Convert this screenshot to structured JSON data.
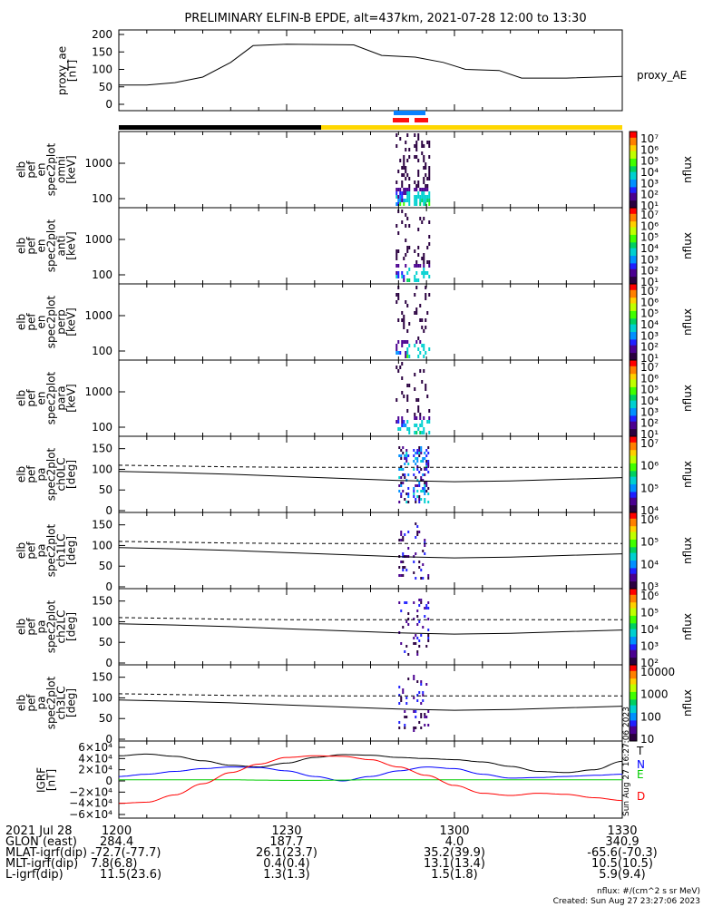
{
  "title": "PRELIMINARY ELFIN-B EPDE, alt=437km, 2021-07-28 12:00 to 13:30",
  "colors": {
    "blue_bar": "#0a82ff",
    "red_bar": "#ff1010",
    "black_bar": "#000000",
    "yellow_bar": "#ffd700"
  },
  "chart_data": {
    "type": "heatmap",
    "x_range_min": [
      0,
      90
    ],
    "x_ticks": [
      "1200",
      "1230",
      "1300",
      "1330"
    ],
    "proxy_ae": {
      "ylabel": [
        "proxy_ae",
        "[nT]"
      ],
      "legend": "proxy_AE",
      "yticks": [
        "0",
        "50",
        "100",
        "150",
        "200"
      ],
      "ylim": [
        -10,
        210
      ],
      "x": [
        0,
        5,
        10,
        15,
        20,
        24,
        30,
        42,
        47,
        53,
        58,
        62,
        68,
        72,
        80,
        90
      ],
      "y": [
        55,
        55,
        62,
        78,
        120,
        168,
        172,
        170,
        140,
        135,
        120,
        100,
        97,
        75,
        75,
        80
      ]
    },
    "burst_interval_min": [
      49.5,
      55.5
    ],
    "energy_panels": [
      {
        "label": [
          "elb",
          "pef",
          "en",
          "spec2plot",
          "omni",
          "[keV]"
        ]
      },
      {
        "label": [
          "elb",
          "pef",
          "en",
          "spec2plot",
          "anti",
          "[keV]"
        ]
      },
      {
        "label": [
          "elb",
          "pef",
          "en",
          "spec2plot",
          "perp",
          "[keV]"
        ]
      },
      {
        "label": [
          "elb",
          "pef",
          "en",
          "spec2plot",
          "para",
          "[keV]"
        ]
      }
    ],
    "energy_yticks": [
      "1000",
      "100"
    ],
    "energy_cbar": [
      "10⁷",
      "10⁶",
      "10⁵",
      "10⁴",
      "10³",
      "10²",
      "10¹"
    ],
    "pa_panels": [
      {
        "label": [
          "elb",
          "pef",
          "pa",
          "spec2plot",
          "ch0LC",
          "[deg]"
        ],
        "cbar": [
          "10⁷",
          "10⁶",
          "10⁵",
          "10⁴"
        ]
      },
      {
        "label": [
          "elb",
          "pef",
          "pa",
          "spec2plot",
          "ch1LC",
          "[deg]"
        ],
        "cbar": [
          "10⁶",
          "10⁵",
          "10⁴",
          "10³"
        ]
      },
      {
        "label": [
          "elb",
          "pef",
          "pa",
          "spec2plot",
          "ch2LC",
          "[deg]"
        ],
        "cbar": [
          "10⁶",
          "10⁵",
          "10⁴",
          "10³",
          "10²"
        ]
      },
      {
        "label": [
          "elb",
          "pef",
          "pa",
          "spec2plot",
          "ch3LC",
          "[deg]"
        ],
        "cbar": [
          "10000",
          "1000",
          "100",
          "10"
        ]
      }
    ],
    "pa_yticks": [
      "150",
      "100",
      "50",
      "0"
    ],
    "pa_loss_cone": {
      "x": [
        0,
        10,
        20,
        30,
        40,
        50,
        60,
        70,
        80,
        90
      ],
      "solid": [
        95,
        92,
        88,
        83,
        78,
        73,
        70,
        72,
        76,
        80
      ],
      "dashed": [
        110,
        108,
        106,
        105,
        105,
        105,
        105,
        105,
        105,
        105
      ]
    },
    "cbar_label": "nflux",
    "igrf": {
      "ylabel": [
        "IGRF",
        "[nT]"
      ],
      "yticks": [
        "6×10⁴",
        "4×10⁴",
        "2×10⁴",
        "0",
        "−2×10⁴",
        "−4×10⁴",
        "−6×10⁴"
      ],
      "ylim": [
        -65000,
        65000
      ],
      "x": [
        0,
        5,
        10,
        15,
        20,
        25,
        30,
        35,
        40,
        45,
        50,
        55,
        60,
        65,
        70,
        75,
        80,
        85,
        90
      ],
      "series": [
        {
          "name": "T",
          "color": "#000000",
          "values": [
            45000,
            48000,
            44000,
            36000,
            28000,
            25000,
            32000,
            42000,
            47000,
            46000,
            42000,
            40000,
            38000,
            34000,
            26000,
            17000,
            15000,
            20000,
            35000
          ]
        },
        {
          "name": "N",
          "color": "#0000ff",
          "values": [
            8000,
            12000,
            17000,
            22000,
            25000,
            24000,
            18000,
            8000,
            0,
            8000,
            18000,
            25000,
            22000,
            12000,
            5000,
            6000,
            8000,
            10000,
            12000
          ]
        },
        {
          "name": "E",
          "color": "#00cc00",
          "values": [
            2000,
            2000,
            2000,
            2000,
            2000,
            1500,
            1000,
            1000,
            1500,
            2000,
            2000,
            2000,
            2000,
            2000,
            2000,
            2000,
            2000,
            2000,
            2000
          ]
        },
        {
          "name": "D",
          "color": "#ff0000",
          "values": [
            -40000,
            -38000,
            -25000,
            -5000,
            15000,
            30000,
            42000,
            45000,
            44000,
            38000,
            25000,
            10000,
            -8000,
            -22000,
            -26000,
            -22000,
            -24000,
            -30000,
            -35000
          ]
        }
      ]
    }
  },
  "side_stamp": "Sun Aug 27 16:27:06 2023",
  "footer": {
    "rows": [
      {
        "label": "2021 Jul 28",
        "vals": [
          "1200",
          "1230",
          "1300",
          "1330"
        ]
      },
      {
        "label": "GLON (east)",
        "vals": [
          "284.4",
          "187.7",
          "4.0",
          "340.9"
        ]
      },
      {
        "label": "MLAT-igrf(dip)",
        "vals": [
          "-72.7(-77.7)",
          "26.1(23.7)",
          "35.2(39.9)",
          "-65.6(-70.3)"
        ]
      },
      {
        "label": "MLT-igrf(dip)",
        "vals": [
          "7.8(6.8)",
          "0.4(0.4)",
          "13.1(13.4)",
          "10.5(10.5)"
        ]
      },
      {
        "label": "L-igrf(dip)",
        "vals": [
          "11.5(23.6)",
          "1.3(1.3)",
          "1.5(1.8)",
          "5.9(9.4)"
        ]
      }
    ],
    "units": "nflux: #/(cm^2 s sr MeV)",
    "created": "Created: Sun Aug 27 23:27:06 2023"
  }
}
